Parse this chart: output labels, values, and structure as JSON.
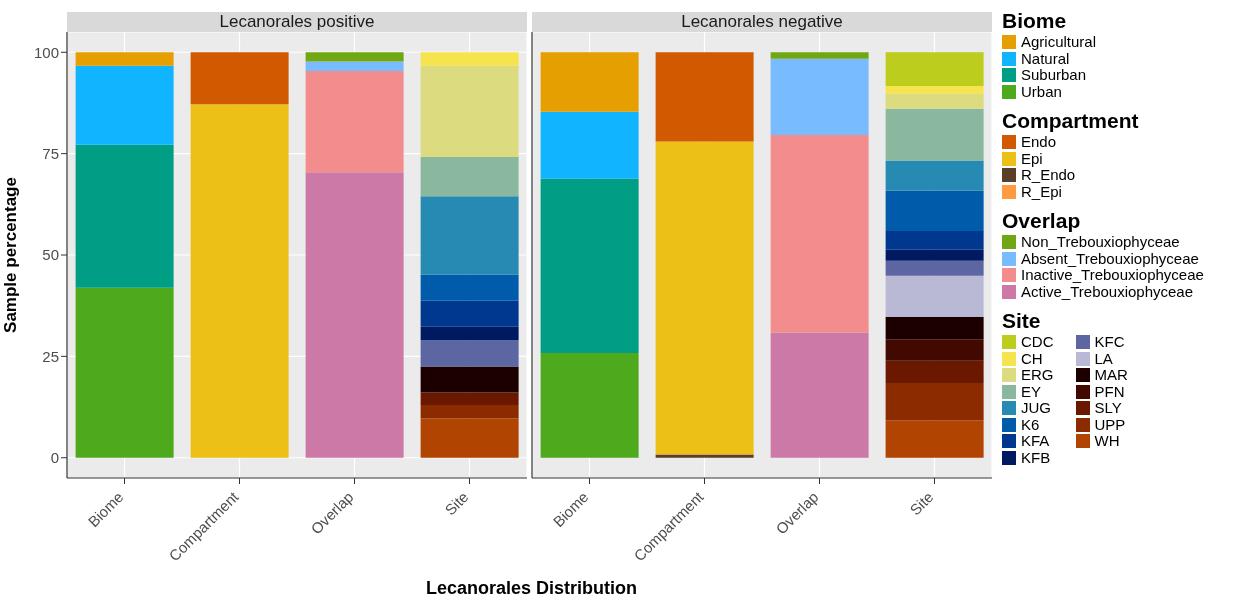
{
  "chart_data": [
    {
      "type": "bar",
      "title": "Lecanorales positive",
      "xlabel": "Lecanorales Distribution",
      "ylabel": "Sample  percentage",
      "categories": [
        "Biome",
        "Compartment",
        "Overlap",
        "Site"
      ],
      "stacked": true,
      "ylim": [
        -5,
        105
      ],
      "yticks": [
        0,
        25,
        50,
        75,
        100
      ],
      "grid": true,
      "series": [
        {
          "color": "#4fa91c",
          "values": [
            41.9,
            null,
            null,
            null
          ]
        },
        {
          "color": "#009e84",
          "values": [
            35.3,
            null,
            null,
            null
          ]
        },
        {
          "color": "#10b4ff",
          "values": [
            19.5,
            null,
            null,
            null
          ]
        },
        {
          "color": "#e69f00",
          "values": [
            3.3,
            null,
            null,
            null
          ]
        },
        {
          "color": "#ff9a40",
          "values": [
            null,
            0,
            null,
            null
          ]
        },
        {
          "color": "#5a3e28",
          "values": [
            null,
            0,
            null,
            null
          ]
        },
        {
          "color": "#ecc016",
          "values": [
            null,
            87.2,
            null,
            null
          ]
        },
        {
          "color": "#d15a00",
          "values": [
            null,
            12.8,
            null,
            null
          ]
        },
        {
          "color": "#cc79a7",
          "values": [
            null,
            null,
            70.4,
            null
          ]
        },
        {
          "color": "#f38c8d",
          "values": [
            null,
            null,
            25.0,
            null
          ]
        },
        {
          "color": "#79bbff",
          "values": [
            null,
            null,
            2.3,
            null
          ]
        },
        {
          "color": "#72a714",
          "values": [
            null,
            null,
            2.3,
            null
          ]
        },
        {
          "color": "#b04400",
          "values": [
            null,
            null,
            null,
            9.7
          ]
        },
        {
          "color": "#8d2b00",
          "values": [
            null,
            null,
            null,
            3.3
          ]
        },
        {
          "color": "#6b1800",
          "values": [
            null,
            null,
            null,
            3.1
          ]
        },
        {
          "color": "#1c0000",
          "values": [
            null,
            null,
            null,
            6.4
          ]
        },
        {
          "color": "#5b66a3",
          "values": [
            null,
            null,
            null,
            6.5
          ]
        },
        {
          "color": "#001a62",
          "values": [
            null,
            null,
            null,
            3.3
          ]
        },
        {
          "color": "#003890",
          "values": [
            null,
            null,
            null,
            6.4
          ]
        },
        {
          "color": "#005baa",
          "values": [
            null,
            null,
            null,
            6.5
          ]
        },
        {
          "color": "#278ab2",
          "values": [
            null,
            null,
            null,
            19.3
          ]
        },
        {
          "color": "#8ab89f",
          "values": [
            null,
            null,
            null,
            9.7
          ]
        },
        {
          "color": "#dcdb80",
          "values": [
            null,
            null,
            null,
            22.5
          ]
        },
        {
          "color": "#f5e44d",
          "values": [
            null,
            null,
            null,
            3.3
          ]
        }
      ]
    },
    {
      "type": "bar",
      "title": "Lecanorales negative",
      "categories": [
        "Biome",
        "Compartment",
        "Overlap",
        "Site"
      ],
      "stacked": true,
      "ylim": [
        -5,
        105
      ],
      "yticks": [
        0,
        25,
        50,
        75,
        100
      ],
      "grid": true,
      "legend": "right",
      "tick_labels": "x",
      "series": [
        {
          "name": "Urban",
          "color": "#4fa91c",
          "values": [
            25.8,
            null,
            null,
            null
          ]
        },
        {
          "name": "Suburban",
          "color": "#009e84",
          "values": [
            43.0,
            null,
            null,
            null
          ]
        },
        {
          "name": "Natural",
          "color": "#10b4ff",
          "values": [
            16.5,
            null,
            null,
            null
          ]
        },
        {
          "name": "Agricultural",
          "color": "#e69f00",
          "values": [
            14.7,
            null,
            null,
            null
          ]
        },
        {
          "name": "R_Epi",
          "color": "#ff9a40",
          "values": [
            null,
            0,
            null,
            null
          ]
        },
        {
          "name": "R_Endo",
          "color": "#5a3e28",
          "values": [
            null,
            0.8,
            null,
            null
          ]
        },
        {
          "name": "Epi",
          "color": "#ecc016",
          "values": [
            null,
            77.2,
            null,
            null
          ]
        },
        {
          "name": "Endo",
          "color": "#d15a00",
          "values": [
            null,
            22.0,
            null,
            null
          ]
        },
        {
          "name": "Active_Trebouxiophyceae",
          "color": "#cc79a7",
          "values": [
            null,
            null,
            30.9,
            null
          ]
        },
        {
          "name": "Inactive_Trebouxiophyceae",
          "color": "#f38c8d",
          "values": [
            null,
            null,
            48.7,
            null
          ]
        },
        {
          "name": "Absent_Trebouxiophyceae",
          "color": "#79bbff",
          "values": [
            null,
            null,
            18.8,
            null
          ]
        },
        {
          "name": "Non_Trebouxiophyceae",
          "color": "#72a714",
          "values": [
            null,
            null,
            1.6,
            null
          ]
        },
        {
          "name": "WH",
          "color": "#b04400",
          "values": [
            null,
            null,
            null,
            9.2
          ]
        },
        {
          "name": "UPP",
          "color": "#8d2b00",
          "values": [
            null,
            null,
            null,
            9.2
          ]
        },
        {
          "name": "SLY",
          "color": "#6b1800",
          "values": [
            null,
            null,
            null,
            5.5
          ]
        },
        {
          "name": "PFN",
          "color": "#420900",
          "values": [
            null,
            null,
            null,
            5.3
          ]
        },
        {
          "name": "MAR",
          "color": "#1c0000",
          "values": [
            null,
            null,
            null,
            5.6
          ]
        },
        {
          "name": "LA",
          "color": "#b9b9d6",
          "values": [
            null,
            null,
            null,
            10.1
          ]
        },
        {
          "name": "KFC",
          "color": "#5b66a3",
          "values": [
            null,
            null,
            null,
            3.7
          ]
        },
        {
          "name": "KFB",
          "color": "#001a62",
          "values": [
            null,
            null,
            null,
            2.7
          ]
        },
        {
          "name": "KFA",
          "color": "#003890",
          "values": [
            null,
            null,
            null,
            4.6
          ]
        },
        {
          "name": "K6",
          "color": "#005baa",
          "values": [
            null,
            null,
            null,
            10.0
          ]
        },
        {
          "name": "JUG",
          "color": "#278ab2",
          "values": [
            null,
            null,
            null,
            7.4
          ]
        },
        {
          "name": "EY",
          "color": "#8ab89f",
          "values": [
            null,
            null,
            null,
            12.8
          ]
        },
        {
          "name": "ERG",
          "color": "#dcdb80",
          "values": [
            null,
            null,
            null,
            3.7
          ]
        },
        {
          "name": "CH",
          "color": "#f5e44d",
          "values": [
            null,
            null,
            null,
            1.9
          ]
        },
        {
          "name": "CDC",
          "color": "#bccd1e",
          "values": [
            null,
            null,
            null,
            8.3
          ]
        }
      ]
    }
  ]
}
